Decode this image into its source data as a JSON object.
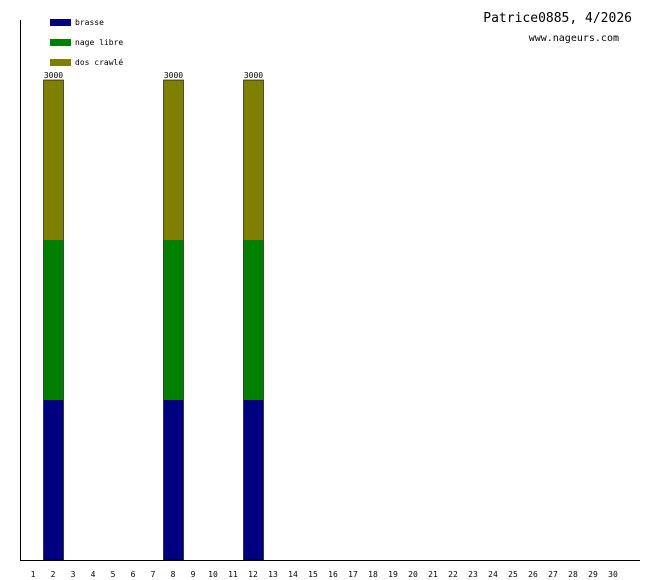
{
  "chart_data": {
    "type": "bar",
    "stacked": true,
    "title": "Patrice0885, 4/2026",
    "subtitle": "www.nageurs.com",
    "categories": [
      "1",
      "2",
      "3",
      "4",
      "5",
      "6",
      "7",
      "8",
      "9",
      "10",
      "11",
      "12",
      "13",
      "14",
      "15",
      "16",
      "17",
      "18",
      "19",
      "20",
      "21",
      "22",
      "23",
      "24",
      "25",
      "26",
      "27",
      "28",
      "29",
      "30"
    ],
    "series": [
      {
        "name": "brasse",
        "color": "#000080",
        "values": [
          0,
          1000,
          0,
          0,
          0,
          0,
          0,
          1000,
          0,
          0,
          0,
          1000,
          0,
          0,
          0,
          0,
          0,
          0,
          0,
          0,
          0,
          0,
          0,
          0,
          0,
          0,
          0,
          0,
          0,
          0
        ]
      },
      {
        "name": "nage libre",
        "color": "#008000",
        "values": [
          0,
          1000,
          0,
          0,
          0,
          0,
          0,
          1000,
          0,
          0,
          0,
          1000,
          0,
          0,
          0,
          0,
          0,
          0,
          0,
          0,
          0,
          0,
          0,
          0,
          0,
          0,
          0,
          0,
          0,
          0
        ]
      },
      {
        "name": "dos crawlé",
        "color": "#808000",
        "values": [
          0,
          1000,
          0,
          0,
          0,
          0,
          0,
          1000,
          0,
          0,
          0,
          1000,
          0,
          0,
          0,
          0,
          0,
          0,
          0,
          0,
          0,
          0,
          0,
          0,
          0,
          0,
          0,
          0,
          0,
          0
        ]
      }
    ],
    "totals": [
      {
        "category": "2",
        "label": "3000"
      },
      {
        "category": "8",
        "label": "3000"
      },
      {
        "category": "12",
        "label": "3000"
      }
    ],
    "ylim": [
      0,
      3000
    ],
    "grid": false,
    "legend_position": "top-left"
  }
}
